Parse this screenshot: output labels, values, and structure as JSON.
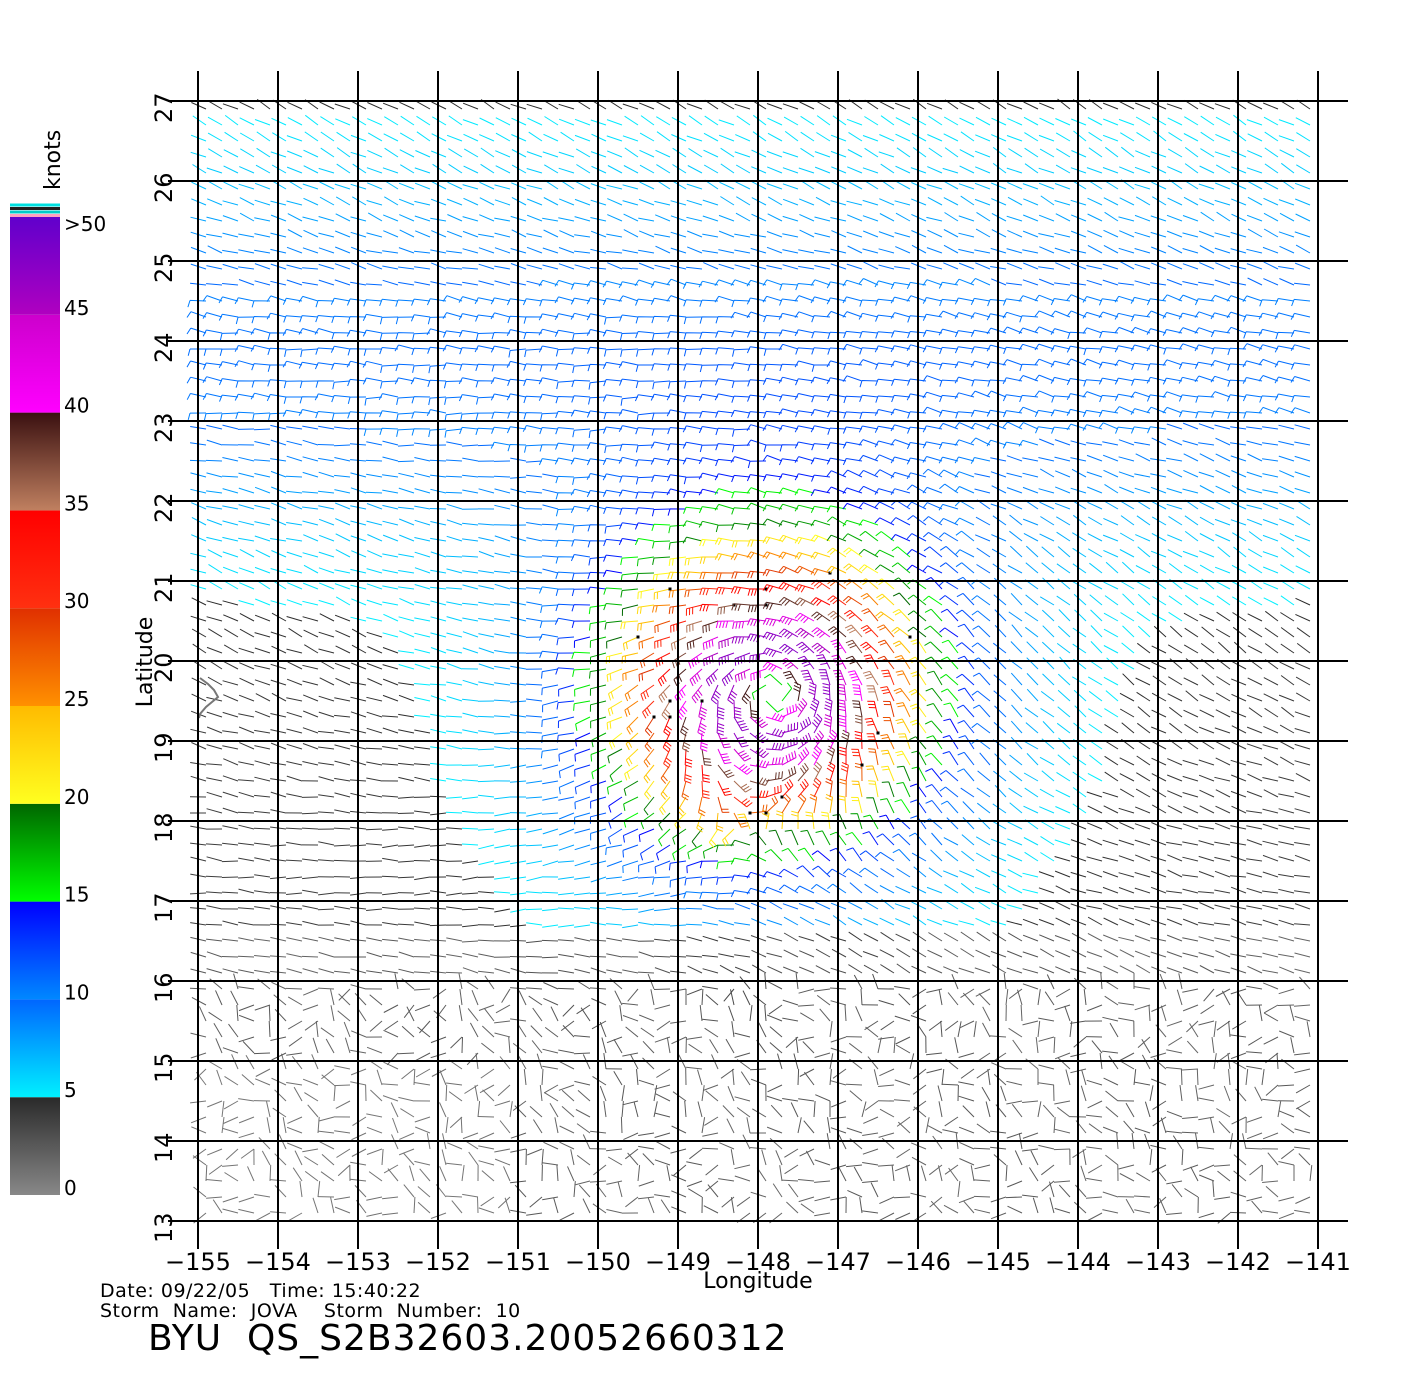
{
  "colorbar": {
    "unit": "knots",
    "bands": [
      {
        "from": 0,
        "to": 5,
        "colors": [
          "#888888",
          "#2a2a2a"
        ]
      },
      {
        "from": 5,
        "to": 10,
        "colors": [
          "#00f0ff",
          "#0066ff"
        ]
      },
      {
        "from": 10,
        "to": 15,
        "colors": [
          "#0088ff",
          "#0000ff"
        ]
      },
      {
        "from": 15,
        "to": 20,
        "colors": [
          "#00ff00",
          "#006600"
        ]
      },
      {
        "from": 20,
        "to": 25,
        "colors": [
          "#ffff20",
          "#ffbb00"
        ]
      },
      {
        "from": 25,
        "to": 30,
        "colors": [
          "#ff9000",
          "#e03000"
        ]
      },
      {
        "from": 30,
        "to": 35,
        "colors": [
          "#ff3010",
          "#ff0000"
        ]
      },
      {
        "from": 35,
        "to": 40,
        "colors": [
          "#c08060",
          "#3a1010"
        ]
      },
      {
        "from": 40,
        "to": 45,
        "colors": [
          "#ff00ff",
          "#cc00cc"
        ]
      },
      {
        "from": 45,
        "to": 50,
        "colors": [
          "#b000c0",
          "#6000cc"
        ]
      }
    ],
    "labels": [
      {
        "value": 0,
        "text": "0"
      },
      {
        "value": 5,
        "text": "5"
      },
      {
        "value": 10,
        "text": "10"
      },
      {
        "value": 15,
        "text": "15"
      },
      {
        "value": 20,
        "text": "20"
      },
      {
        "value": 25,
        "text": "25"
      },
      {
        "value": 30,
        "text": "30"
      },
      {
        "value": 35,
        "text": "35"
      },
      {
        "value": 40,
        "text": "40"
      },
      {
        "value": 45,
        "text": "45"
      },
      {
        "value": 50,
        "text": ">50"
      }
    ],
    "top_stripe_colors": [
      "#ff9fc0",
      "#00c8c8",
      "#202020",
      "#00e0e0"
    ]
  },
  "map": {
    "xlabel": "Longitude",
    "ylabel": "Latitude",
    "lon_range": [
      -155,
      -141
    ],
    "lat_range": [
      13,
      27
    ],
    "lon_ticks": [
      {
        "value": -155,
        "label": "−155"
      },
      {
        "value": -154,
        "label": "−154"
      },
      {
        "value": -153,
        "label": "−153"
      },
      {
        "value": -152,
        "label": "−152"
      },
      {
        "value": -151,
        "label": "−151"
      },
      {
        "value": -150,
        "label": "−150"
      },
      {
        "value": -149,
        "label": "−149"
      },
      {
        "value": -148,
        "label": "−148"
      },
      {
        "value": -147,
        "label": "−147"
      },
      {
        "value": -146,
        "label": "−146"
      },
      {
        "value": -145,
        "label": "−145"
      },
      {
        "value": -144,
        "label": "−144"
      },
      {
        "value": -143,
        "label": "−143"
      },
      {
        "value": -142,
        "label": "−142"
      },
      {
        "value": -141,
        "label": "−141"
      }
    ],
    "lat_ticks": [
      {
        "value": 13,
        "label": "13"
      },
      {
        "value": 14,
        "label": "14"
      },
      {
        "value": 15,
        "label": "15"
      },
      {
        "value": 16,
        "label": "16"
      },
      {
        "value": 17,
        "label": "17"
      },
      {
        "value": 18,
        "label": "18"
      },
      {
        "value": 19,
        "label": "19"
      },
      {
        "value": 20,
        "label": "20"
      },
      {
        "value": 21,
        "label": "21"
      },
      {
        "value": 22,
        "label": "22"
      },
      {
        "value": 23,
        "label": "23"
      },
      {
        "value": 24,
        "label": "24"
      },
      {
        "value": 25,
        "label": "25"
      },
      {
        "value": 26,
        "label": "26"
      },
      {
        "value": 27,
        "label": "27"
      }
    ],
    "storm_center": {
      "lon": -147.8,
      "lat": 19.6
    },
    "coastline_color": "#777777"
  },
  "footer": {
    "date_line": "Date: 09/22/05   Time: 15:40:22",
    "storm_line": "Storm  Name:  JOVA    Storm  Number:  10",
    "file_id": "BYU  QS_S2B32603.20052660312"
  }
}
